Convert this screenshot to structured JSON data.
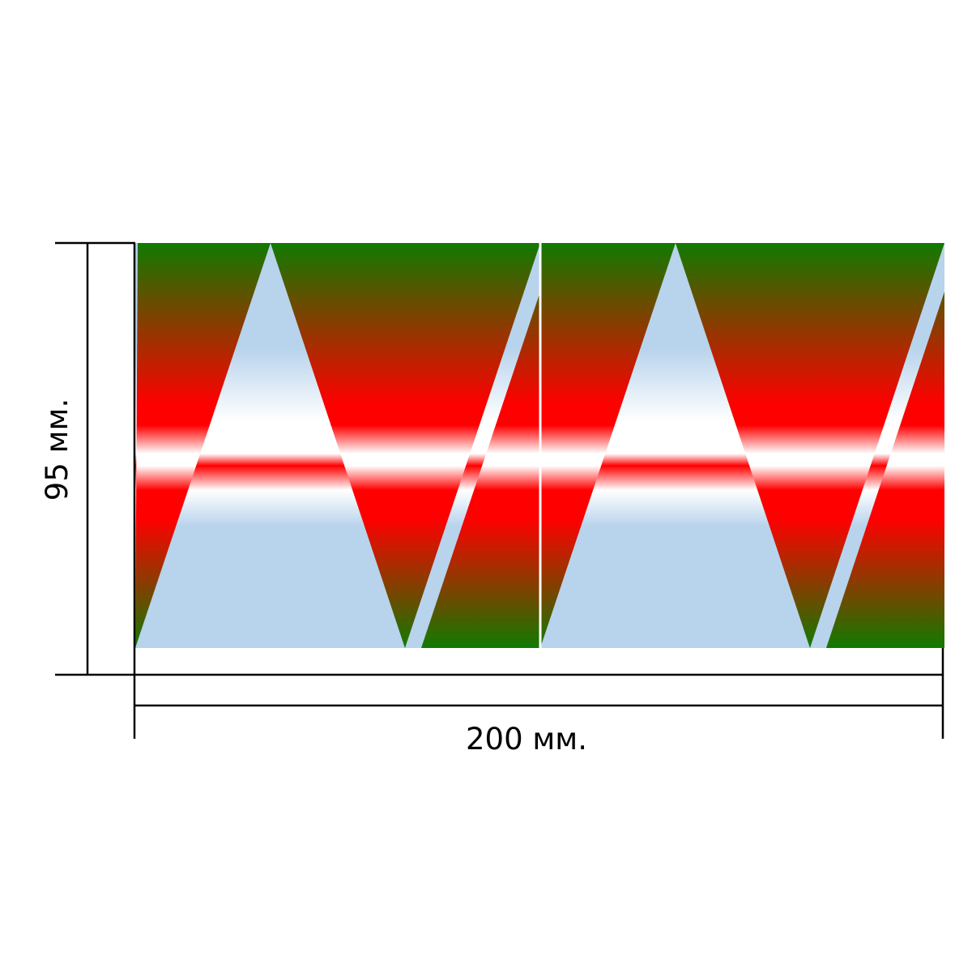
{
  "dimensions": {
    "height_label": "95 мм.",
    "width_label": "200 мм."
  },
  "pattern": {
    "colors": {
      "outer": "#117a00",
      "main": "#ff0000",
      "light_blue": "#b8d3ec",
      "white": "#ffffff"
    }
  }
}
